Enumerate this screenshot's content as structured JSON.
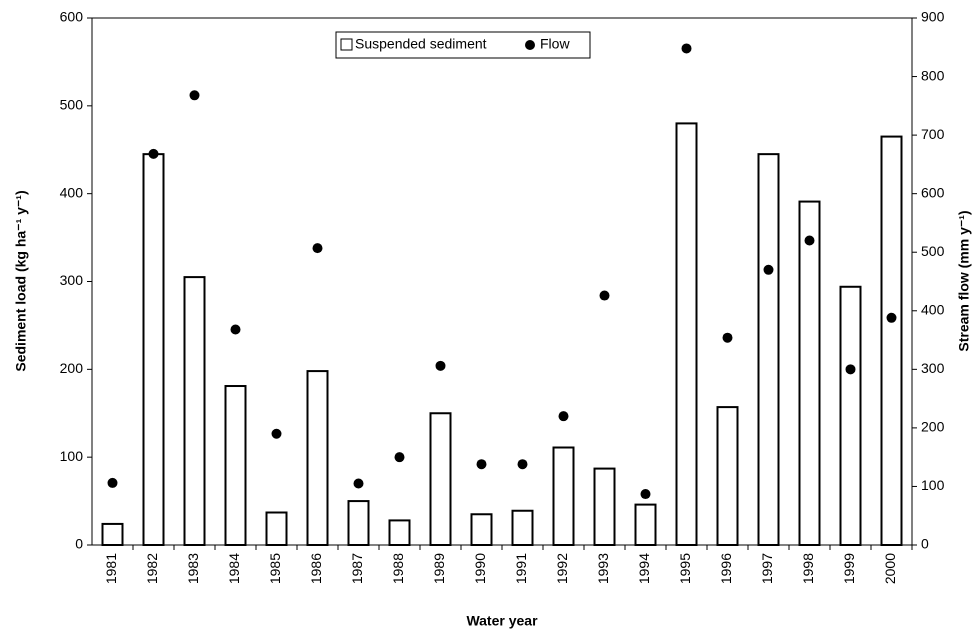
{
  "chart_data": {
    "type": "bar_scatter",
    "xlabel": "Water year",
    "ylabel": "Sediment load (kg ha⁻¹ y⁻¹)",
    "y2label": "Stream flow (mm y⁻¹)",
    "categories": [
      "1981",
      "1982",
      "1983",
      "1984",
      "1985",
      "1986",
      "1987",
      "1988",
      "1989",
      "1990",
      "1991",
      "1992",
      "1993",
      "1994",
      "1995",
      "1996",
      "1997",
      "1998",
      "1999",
      "2000"
    ],
    "series": [
      {
        "name": "Suspended sediment",
        "type": "bar",
        "color": "#ffffff",
        "values": [
          24,
          445,
          305,
          181,
          37,
          198,
          50,
          28,
          150,
          35,
          39,
          111,
          87,
          46,
          480,
          157,
          445,
          391,
          294,
          465
        ]
      },
      {
        "name": "Flow",
        "type": "scatter",
        "axis": "y2",
        "color": "#000000",
        "values": [
          106,
          668,
          768,
          368,
          190,
          507,
          105,
          150,
          306,
          138,
          138,
          220,
          426,
          87,
          848,
          354,
          470,
          520,
          300,
          388
        ]
      }
    ],
    "ylim": [
      0,
      600
    ],
    "yticks": [
      0,
      100,
      200,
      300,
      400,
      500,
      600
    ],
    "y2lim": [
      0,
      900
    ],
    "y2ticks": [
      0,
      100,
      200,
      300,
      400,
      500,
      600,
      700,
      800,
      900
    ],
    "legend": "top"
  }
}
